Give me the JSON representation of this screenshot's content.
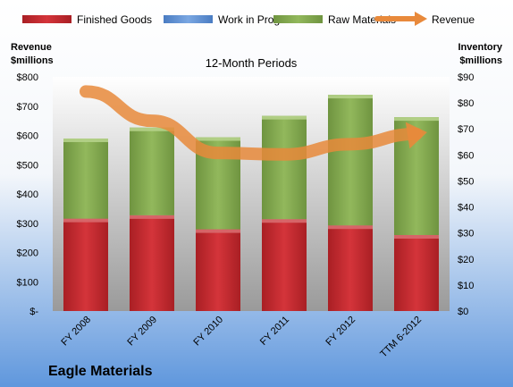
{
  "chart_data": {
    "type": "bar",
    "title": "Eagle Materials",
    "subtitle": "12-Month Periods",
    "categories": [
      "FY 2008",
      "FY 2009",
      "FY 2010",
      "FY 2011",
      "FY 2012",
      "TTM 6-2012"
    ],
    "series": [
      {
        "name": "Finished Goods",
        "axis": "right",
        "stack": "inventory",
        "color": "#c0262b",
        "values": [
          35.5,
          36.8,
          31.4,
          35.3,
          32.9,
          29.2
        ]
      },
      {
        "name": "Work in Progress",
        "axis": "right",
        "stack": "inventory",
        "color": "#5b8fd6",
        "values": [
          0,
          0,
          0,
          0,
          0,
          0
        ]
      },
      {
        "name": "Raw Materials",
        "axis": "right",
        "stack": "inventory",
        "color": "#8db255",
        "values": [
          30.8,
          33.7,
          35.4,
          39.7,
          50.2,
          45.3
        ]
      },
      {
        "name": "Revenue",
        "axis": "left",
        "type": "line",
        "color": "#e8893b",
        "values": [
          750,
          650,
          540,
          535,
          570,
          605
        ]
      }
    ],
    "y_left": {
      "label_line1": "Revenue",
      "label_line2": "$millions",
      "min": 0,
      "max": 800,
      "step": 100,
      "tick_labels": [
        "$-",
        "$100",
        "$200",
        "$300",
        "$400",
        "$500",
        "$600",
        "$700",
        "$800"
      ]
    },
    "y_right": {
      "label_line1": "Inventory",
      "label_line2": "$millions",
      "min": 0,
      "max": 90,
      "step": 10,
      "tick_labels": [
        "$0",
        "$10",
        "$20",
        "$30",
        "$40",
        "$50",
        "$60",
        "$70",
        "$80",
        "$90"
      ]
    },
    "legend": {
      "placement": "top"
    },
    "grid": false
  }
}
